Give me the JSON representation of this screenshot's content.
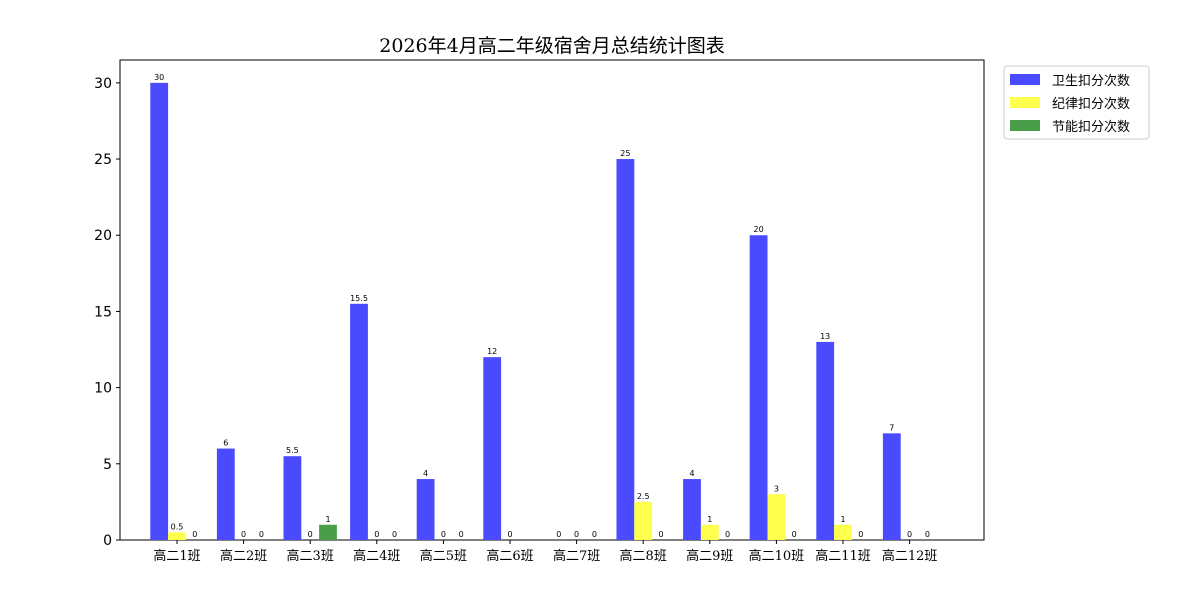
{
  "chart_data": {
    "type": "bar",
    "title": "2026年4月高二年级宿舍月总结统计图表",
    "xlabel": "",
    "ylabel": "",
    "categories": [
      "高二1班",
      "高二2班",
      "高二3班",
      "高二4班",
      "高二5班",
      "高二6班",
      "高二7班",
      "高二8班",
      "高二9班",
      "高二10班",
      "高二11班",
      "高二12班"
    ],
    "series": [
      {
        "name": "卫生扣分次数",
        "color": "#4a4aff",
        "values": [
          30,
          6,
          5.5,
          15.5,
          4,
          12,
          0,
          25,
          4,
          20,
          13,
          7
        ]
      },
      {
        "name": "纪律扣分次数",
        "color": "#ffff4d",
        "values": [
          0.5,
          0,
          0,
          0,
          0,
          0,
          0,
          2.5,
          1,
          3,
          1,
          0
        ]
      },
      {
        "name": "节能扣分次数",
        "color": "#4a9e4a",
        "values": [
          0,
          0,
          1,
          0,
          0,
          null,
          0,
          0,
          0,
          0,
          0,
          0
        ]
      }
    ],
    "yticks": [
      0,
      5,
      10,
      15,
      20,
      25,
      30
    ],
    "ylim": [
      0,
      31.5
    ],
    "legend_position": "top-right, outside plot"
  }
}
